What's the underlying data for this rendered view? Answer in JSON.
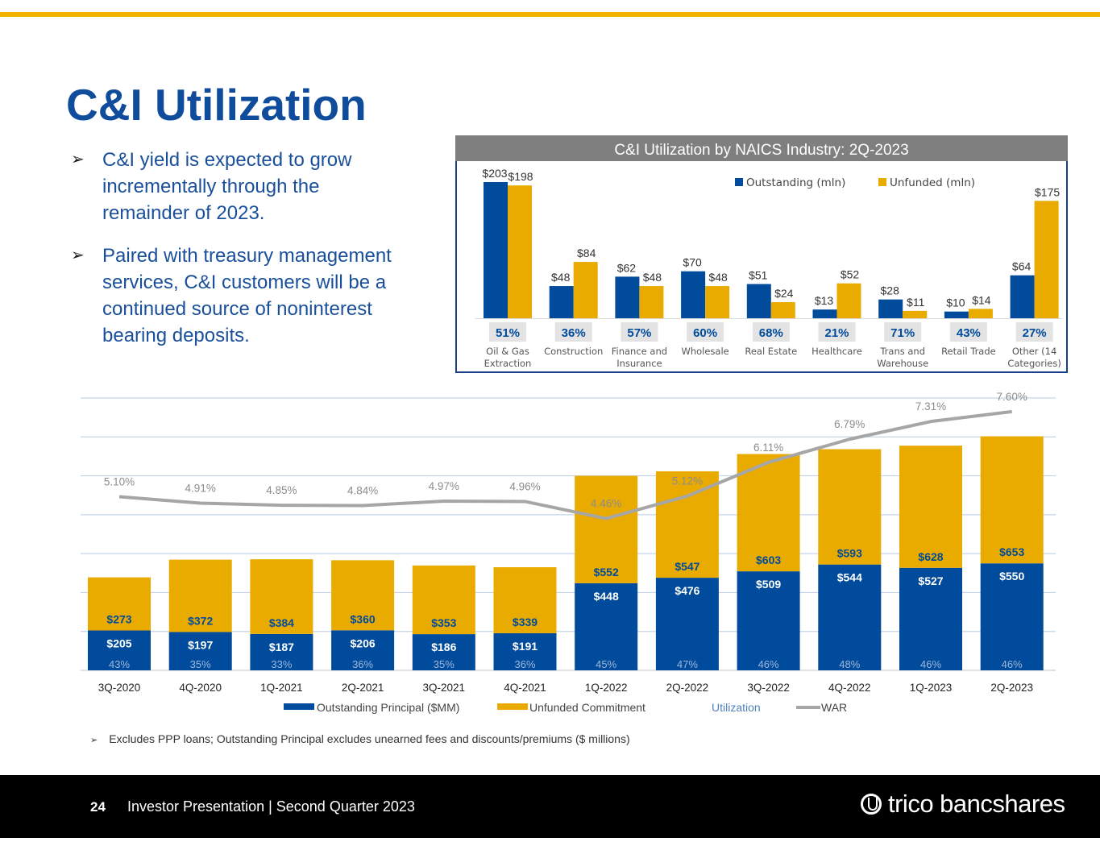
{
  "colors": {
    "accent_bar": "#f0b400",
    "title": "#0f4c9c",
    "outstanding": "#004b9b",
    "unfunded": "#eaab00",
    "war": "#a6a6a6",
    "utilization_text": "#4f81bd"
  },
  "header": {
    "title": "C&I Utilization"
  },
  "bullets": [
    {
      "icon": "arrow-bullet-icon",
      "text": "C&I yield is expected to grow incrementally through the remainder of 2023."
    },
    {
      "icon": "arrow-bullet-icon",
      "text": "Paired with treasury management services, C&I customers will be a continued source of noninterest bearing deposits."
    }
  ],
  "chart_data": [
    {
      "type": "bar",
      "title": "C&I Utilization by NAICS Industry: 2Q-2023",
      "categories": [
        "Oil & Gas Extraction",
        "Construction",
        "Finance and Insurance",
        "Wholesale",
        "Real Estate",
        "Healthcare",
        "Trans and Warehouse",
        "Retail Trade",
        "Other (14 Categories)"
      ],
      "series": [
        {
          "name": "Outstanding (mln)",
          "values": [
            203,
            48,
            62,
            70,
            51,
            13,
            28,
            10,
            64
          ],
          "labels": [
            "$203",
            "$48",
            "$62",
            "$70",
            "$51",
            "$13",
            "$28",
            "$10",
            "$64"
          ]
        },
        {
          "name": "Unfunded (mln)",
          "values": [
            198,
            84,
            48,
            48,
            24,
            52,
            11,
            14,
            175
          ],
          "labels": [
            "$198",
            "$84",
            "$48",
            "$48",
            "$24",
            "$52",
            "$11",
            "$14",
            "$175"
          ]
        }
      ],
      "utilization": [
        "51%",
        "36%",
        "57%",
        "60%",
        "68%",
        "21%",
        "71%",
        "43%",
        "27%"
      ],
      "ylim": [
        0,
        210
      ],
      "legend": "top-right",
      "grid": false
    },
    {
      "type": "bar",
      "stacked": true,
      "categories": [
        "3Q-2020",
        "4Q-2020",
        "1Q-2021",
        "2Q-2021",
        "3Q-2021",
        "4Q-2021",
        "1Q-2022",
        "2Q-2022",
        "3Q-2022",
        "4Q-2022",
        "1Q-2023",
        "2Q-2023"
      ],
      "series": [
        {
          "name": "Outstanding Principal ($MM)",
          "values": [
            205,
            197,
            187,
            206,
            186,
            191,
            448,
            476,
            509,
            544,
            527,
            550
          ],
          "labels": [
            "$205",
            "$197",
            "$187",
            "$206",
            "$186",
            "$191",
            "$448",
            "$476",
            "$509",
            "$544",
            "$527",
            "$550"
          ]
        },
        {
          "name": "Unfunded Commitment",
          "values": [
            273,
            372,
            384,
            360,
            353,
            339,
            552,
            547,
            603,
            593,
            628,
            653
          ],
          "labels": [
            "$273",
            "$372",
            "$384",
            "$360",
            "$353",
            "$339",
            "$552",
            "$547",
            "$603",
            "$593",
            "$628",
            "$653"
          ]
        },
        {
          "name": "Utilization",
          "type": "label",
          "labels": [
            "43%",
            "35%",
            "33%",
            "36%",
            "35%",
            "36%",
            "45%",
            "47%",
            "46%",
            "48%",
            "46%",
            "46%"
          ]
        },
        {
          "name": "WAR",
          "type": "line",
          "axis": "secondary",
          "values": [
            5.1,
            4.91,
            4.85,
            4.84,
            4.97,
            4.96,
            4.46,
            5.12,
            6.11,
            6.79,
            7.31,
            7.6
          ],
          "labels": [
            "5.10%",
            "4.91%",
            "4.85%",
            "4.84%",
            "4.97%",
            "4.96%",
            "4.46%",
            "5.12%",
            "6.11%",
            "6.79%",
            "7.31%",
            "7.60%"
          ]
        }
      ],
      "ylim": [
        0,
        1400
      ],
      "y2lim": [
        0,
        8
      ],
      "grid": true,
      "legend": "bottom"
    }
  ],
  "footnote": {
    "icon": "arrow-bullet-icon",
    "text": "Excludes PPP loans; Outstanding Principal excludes unearned fees and discounts/premiums ($ millions)"
  },
  "footer": {
    "page_number": "24",
    "text": "Investor Presentation | Second Quarter 2023",
    "logo_text": "trico bancshares"
  }
}
